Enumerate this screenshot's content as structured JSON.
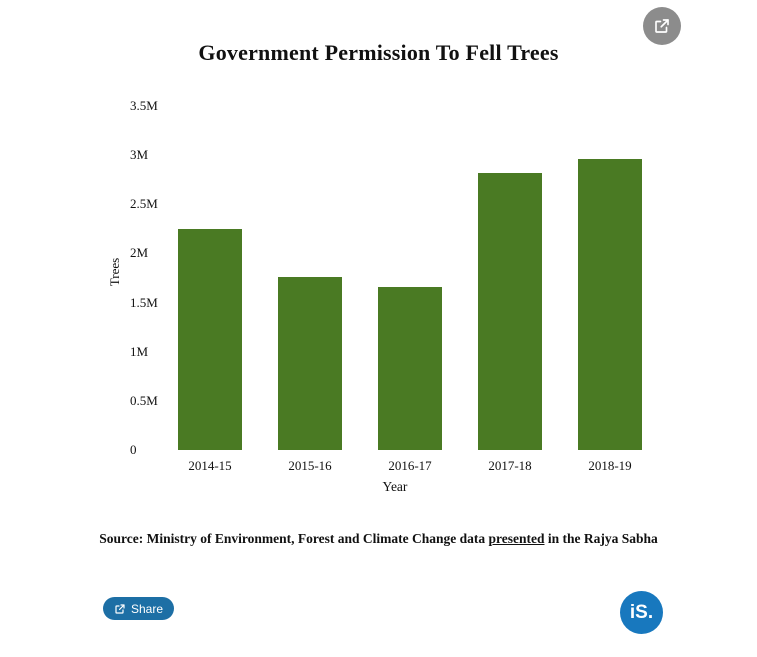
{
  "header": {
    "top_share_icon": "share-external-icon"
  },
  "chart_data": {
    "type": "bar",
    "title": "Government Permission To Fell Trees",
    "categories": [
      "2014-15",
      "2015-16",
      "2016-17",
      "2017-18",
      "2018-19"
    ],
    "values": [
      2.25,
      1.76,
      1.66,
      2.82,
      2.96
    ],
    "values_unit": "millions of trees",
    "xlabel": "Year",
    "ylabel": "Trees",
    "ylim": [
      0,
      3.5
    ],
    "ytick_step": 0.5,
    "ytick_labels": [
      "0",
      "0.5M",
      "1M",
      "1.5M",
      "2M",
      "2.5M",
      "3M",
      "3.5M"
    ],
    "bar_color": "#4a7a23",
    "grid": false,
    "legend": "none"
  },
  "source": {
    "prefix": "Source: Ministry of Environment, Forest and Climate Change data ",
    "link_text": "presented",
    "suffix": " in the Rajya Sabha"
  },
  "footer": {
    "share_button_label": "Share",
    "share_button_color": "#1d6fa5",
    "share_icon": "share-external-icon",
    "logo_text": "iS.",
    "logo_color": "#1878be"
  }
}
